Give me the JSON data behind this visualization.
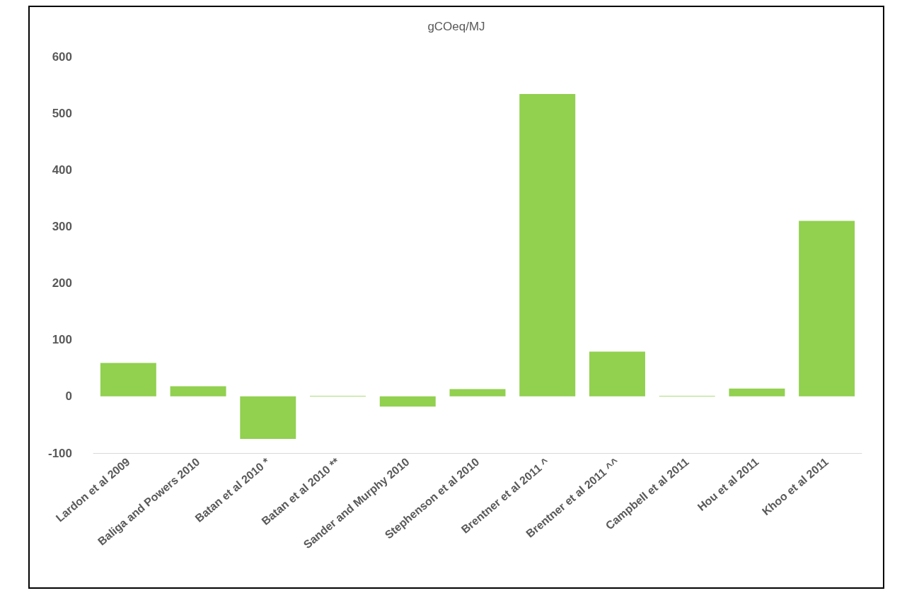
{
  "chart_data": {
    "type": "bar",
    "title": "gCOeq/MJ",
    "categories": [
      "Lardon et al 2009",
      "Baliga and Powers 2010",
      "Batan et al 2010 *",
      "Batan et al 2010 **",
      "Sander and Murphy 2010",
      "Stephenson et al 2010",
      "Brentner et al 2011 ^",
      "Brentner et al 2011 ^^",
      "Campbell et al 2011",
      "Hou et al 2011",
      "Khoo et al 2011"
    ],
    "values": [
      59,
      18,
      -75,
      1,
      -18,
      13,
      534,
      79,
      1,
      14,
      310
    ],
    "color": "#92d050",
    "ylim": [
      -100,
      600
    ],
    "yticks": [
      -100,
      0,
      100,
      200,
      300,
      400,
      500,
      600
    ],
    "grid": false
  }
}
